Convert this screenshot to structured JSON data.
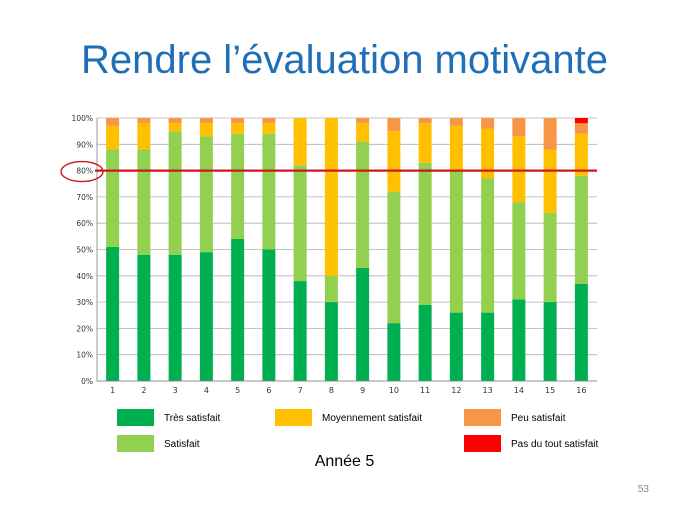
{
  "slide": {
    "title": "Rendre l’évaluation motivante",
    "caption": "Année 5",
    "slide_number": "53"
  },
  "chart_data": {
    "type": "bar",
    "stacked": true,
    "categories": [
      "1",
      "2",
      "3",
      "4",
      "5",
      "6",
      "7",
      "8",
      "9",
      "10",
      "11",
      "12",
      "13",
      "14",
      "15",
      "16"
    ],
    "ylim": [
      0,
      100
    ],
    "yticks": [
      "0%",
      "10%",
      "20%",
      "30%",
      "40%",
      "50%",
      "60%",
      "70%",
      "80%",
      "90%",
      "100%"
    ],
    "grid": true,
    "reference_line": 80,
    "highlighted_tick": "80%",
    "series": [
      {
        "name": "Très satisfait",
        "color": "#00b050",
        "values": [
          51,
          48,
          48,
          49,
          54,
          50,
          38,
          30,
          43,
          22,
          29,
          26,
          26,
          31,
          30,
          37
        ]
      },
      {
        "name": "Satisfait",
        "color": "#92d050",
        "values": [
          37,
          40,
          47,
          44,
          40,
          44,
          44,
          10,
          48,
          50,
          54,
          54,
          51,
          37,
          34,
          41
        ]
      },
      {
        "name": "Moyennement satisfait",
        "color": "#ffc000",
        "values": [
          9,
          10,
          3,
          5,
          4,
          4,
          18,
          60,
          7,
          23,
          15,
          17,
          19,
          25,
          24,
          16
        ]
      },
      {
        "name": "Peu satisfait",
        "color": "#f79646",
        "values": [
          3,
          2,
          2,
          2,
          2,
          2,
          0,
          0,
          2,
          5,
          2,
          3,
          4,
          7,
          12,
          4
        ]
      },
      {
        "name": "Pas du tout satisfait",
        "color": "#ff0000",
        "values": [
          0,
          0,
          0,
          0,
          0,
          0,
          0,
          0,
          0,
          0,
          0,
          0,
          0,
          0,
          0,
          2
        ]
      }
    ],
    "legend_placement": "bottom",
    "legend_order": [
      0,
      2,
      3,
      1,
      4
    ]
  }
}
